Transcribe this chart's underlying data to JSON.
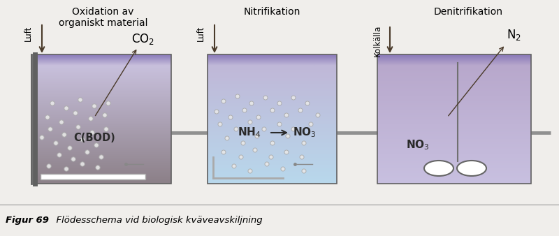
{
  "fig_width": 8.0,
  "fig_height": 3.38,
  "dpi": 100,
  "bg_color": "#f0eeeb",
  "tank1_title_line1": "Oxidation av",
  "tank1_title_line2": "organiskt material",
  "tank2_title": "Nitrifikation",
  "tank3_title": "Denitrifikation",
  "luft1_label": "Luft",
  "luft2_label": "Luft",
  "kolkalla_label": "Kolkälla",
  "co2_label": "CO",
  "n2_label": "N",
  "cbod_label": "C(BOD)",
  "nh4_label": "NH",
  "no3_label2": "NO",
  "no3_label3": "NO",
  "caption_bold": "Figur 69",
  "caption_italic": "  Flödesschema vid biologisk kväveavskiljning",
  "tank1_water_top": "#c8c0dc",
  "tank1_water_bot": "#8c8088",
  "tank2_water_top": "#c0b8d8",
  "tank2_water_bot": "#b8d8ec",
  "tank3_water_top": "#b8a8cc",
  "tank3_water_bot": "#c8c0e0",
  "tank_border": "#606060",
  "pipe_color": "#909090",
  "arrow_color": "#4a3a2a",
  "bubble_face": "#e8e8e8",
  "bubble_edge": "#aaaaaa",
  "stirrer_color": "#707070",
  "caption_line_color": "#999999"
}
